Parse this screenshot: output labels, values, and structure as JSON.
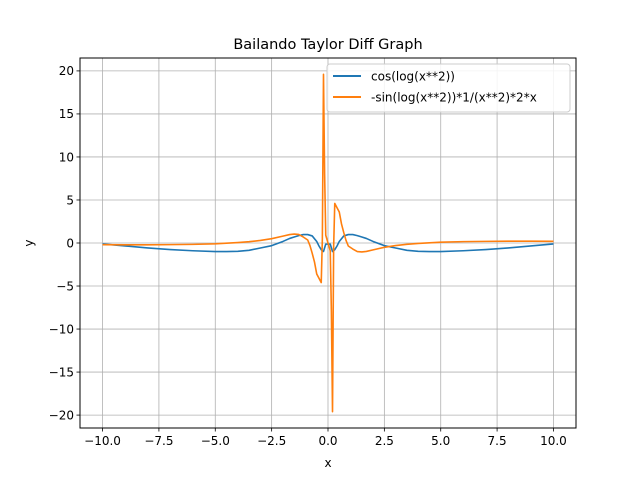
{
  "chart_data": {
    "type": "line",
    "title": "Bailando Taylor Diff Graph",
    "xlabel": "x",
    "ylabel": "y",
    "xlim": [
      -11,
      11
    ],
    "ylim": [
      -21.5,
      21.5
    ],
    "xticks": [
      -10,
      -7.5,
      -5,
      -2.5,
      0,
      2.5,
      5,
      7.5,
      10
    ],
    "xtick_labels": [
      "−10.0",
      "−7.5",
      "−5.0",
      "−2.5",
      "0.0",
      "2.5",
      "5.0",
      "7.5",
      "10.0"
    ],
    "yticks": [
      -20,
      -15,
      -10,
      -5,
      0,
      5,
      10,
      15,
      20
    ],
    "ytick_labels": [
      "−20",
      "−15",
      "−10",
      "−5",
      "0",
      "5",
      "10",
      "15",
      "20"
    ],
    "grid": true,
    "legend_position": "top-right",
    "series": [
      {
        "name": "cos(log(x**2))",
        "color": "#1f77b4",
        "x": [
          -10,
          -9,
          -8,
          -7,
          -6,
          -5,
          -4.5,
          -4,
          -3.5,
          -3,
          -2.5,
          -2,
          -1.7,
          -1.5,
          -1.3,
          -1.1,
          -0.9,
          -0.7,
          -0.5,
          -0.4,
          -0.3,
          -0.2,
          -0.1,
          0.1,
          0.2,
          0.3,
          0.4,
          0.5,
          0.7,
          0.9,
          1.1,
          1.3,
          1.5,
          1.7,
          2,
          2.5,
          3,
          3.5,
          4,
          4.5,
          5,
          6,
          7,
          8,
          9,
          10
        ],
        "y": [
          -0.11,
          -0.34,
          -0.57,
          -0.76,
          -0.9,
          -0.99,
          -1.0,
          -0.97,
          -0.85,
          -0.58,
          -0.31,
          0.18,
          0.53,
          0.7,
          0.86,
          0.98,
          0.98,
          0.82,
          0.18,
          -0.35,
          -0.78,
          -0.99,
          -0.13,
          -0.13,
          -0.99,
          -0.78,
          -0.35,
          0.18,
          0.82,
          0.98,
          0.98,
          0.86,
          0.7,
          0.53,
          0.18,
          -0.31,
          -0.58,
          -0.85,
          -0.97,
          -1.0,
          -0.99,
          -0.9,
          -0.76,
          -0.57,
          -0.34,
          -0.11
        ]
      },
      {
        "name": "-sin(log(x**2))*1/(x**2)*2*x",
        "color": "#ff7f0e",
        "x": [
          -10,
          -9,
          -8,
          -7,
          -6,
          -5,
          -4,
          -3.5,
          -3,
          -2.5,
          -2,
          -1.7,
          -1.5,
          -1.3,
          -1.1,
          -0.9,
          -0.8,
          -0.7,
          -0.6,
          -0.5,
          -0.4,
          -0.3,
          -0.25,
          -0.2,
          -0.15,
          -0.1,
          0.1,
          0.15,
          0.2,
          0.25,
          0.3,
          0.4,
          0.5,
          0.6,
          0.7,
          0.8,
          0.9,
          1.1,
          1.3,
          1.5,
          1.7,
          2,
          2.5,
          3,
          3.5,
          4,
          5,
          6,
          7,
          8,
          9,
          10
        ],
        "y": [
          -0.2,
          -0.21,
          -0.21,
          -0.19,
          -0.16,
          -0.1,
          0.05,
          0.15,
          0.3,
          0.5,
          0.8,
          0.98,
          1.04,
          1.0,
          0.7,
          0.35,
          -0.3,
          -1.2,
          -2.2,
          -3.6,
          -4.1,
          -4.6,
          0.5,
          19.6,
          8.0,
          0.9,
          -0.9,
          -8.0,
          -19.6,
          -0.5,
          4.6,
          4.1,
          3.6,
          2.2,
          1.2,
          0.3,
          -0.35,
          -0.7,
          -1.0,
          -1.04,
          -0.98,
          -0.8,
          -0.5,
          -0.3,
          -0.15,
          -0.05,
          0.1,
          0.16,
          0.19,
          0.21,
          0.21,
          0.2
        ]
      }
    ]
  }
}
